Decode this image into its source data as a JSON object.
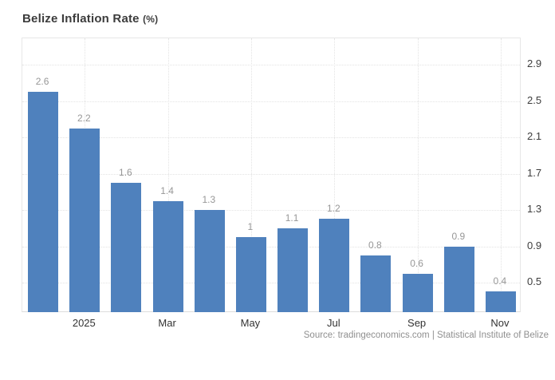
{
  "page": {
    "title": "Belize Inflation Rate",
    "title_unit": "(%)",
    "source": "Source: tradingeconomics.com | Statistical Institute of Belize"
  },
  "colors": {
    "bar": "#4f81bd",
    "gridline": "#e3e3e3",
    "plot_border": "#e7e7e7",
    "value_label": "#979797",
    "tick_label": "#3d3d3d",
    "title": "#3c3c3c",
    "source": "#8f8f8f"
  },
  "chart_data": {
    "type": "bar",
    "title": "Belize Inflation Rate (%)",
    "values": [
      2.6,
      2.2,
      1.6,
      1.4,
      1.3,
      1.0,
      1.1,
      1.2,
      0.8,
      0.6,
      0.9,
      0.4
    ],
    "value_labels": [
      "2.6",
      "2.2",
      "1.6",
      "1.4",
      "1.3",
      "1",
      "1.1",
      "1.2",
      "0.8",
      "0.6",
      "0.9",
      "0.4"
    ],
    "x_ticks": [
      {
        "bar_index": 1,
        "label": "2025"
      },
      {
        "bar_index": 3,
        "label": "Mar"
      },
      {
        "bar_index": 5,
        "label": "May"
      },
      {
        "bar_index": 7,
        "label": "Jul"
      },
      {
        "bar_index": 9,
        "label": "Sep"
      },
      {
        "bar_index": 11,
        "label": "Nov"
      }
    ],
    "y_ticks": [
      0.5,
      0.9,
      1.3,
      1.7,
      2.1,
      2.5,
      2.9
    ],
    "y_tick_labels": [
      "0.5",
      "0.9",
      "1.3",
      "1.7",
      "2.1",
      "2.5",
      "2.9"
    ],
    "ylim": [
      0.166,
      3.19
    ],
    "y_axis_side": "right",
    "grid": "dotted",
    "legend": "none",
    "source": "Source: tradingeconomics.com | Statistical Institute of Belize"
  }
}
